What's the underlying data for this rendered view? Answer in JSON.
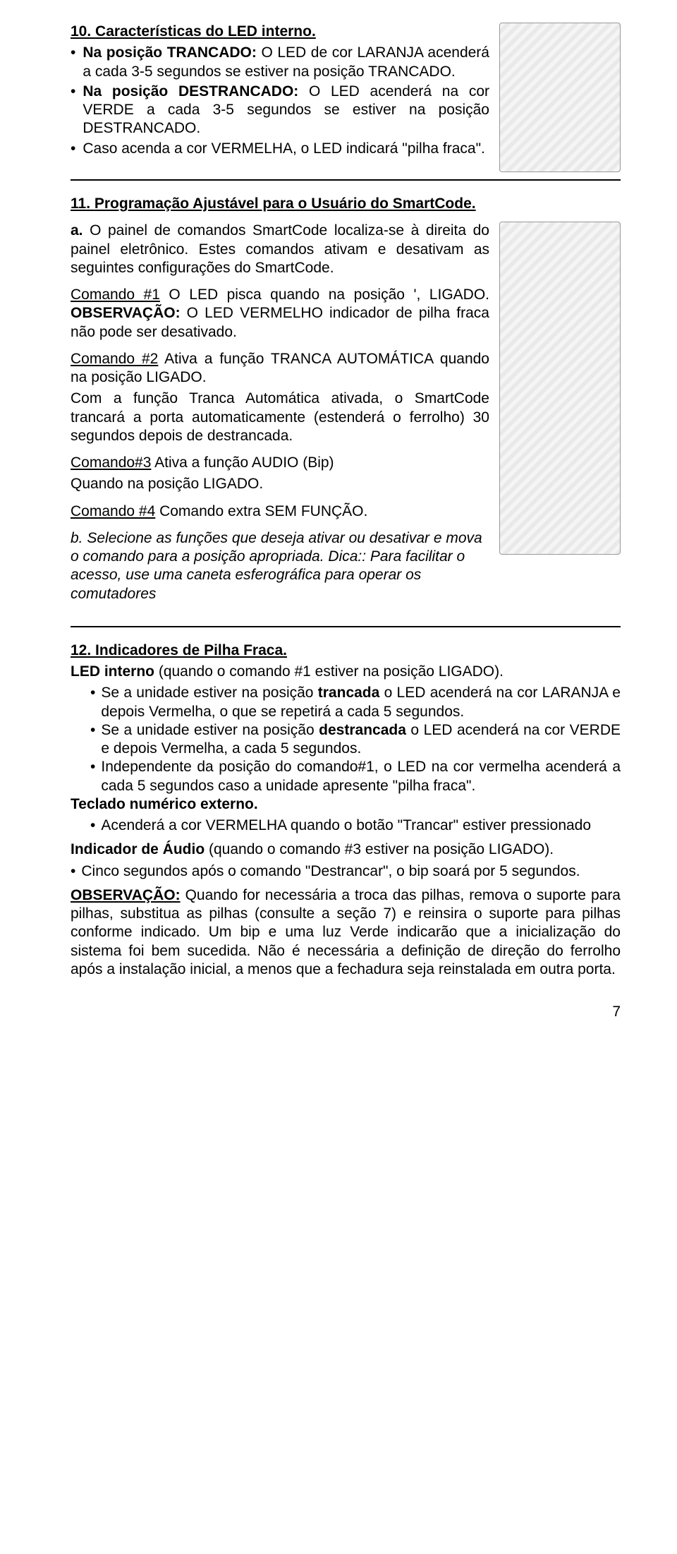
{
  "page_number": "7",
  "sec10": {
    "heading_prefix": "10.   ",
    "heading": "Características do LED interno.",
    "bullets": [
      {
        "lead": "Na posição TRANCADO: ",
        "rest": "O LED de cor LARANJA acenderá a cada 3-5 segundos se estiver na posição TRANCADO."
      },
      {
        "lead": "Na posição DESTRANCADO: ",
        "rest": "O LED acenderá na cor VERDE a cada 3-5 segundos se estiver na posição DESTRANCADO."
      },
      {
        "lead": "",
        "rest": "Caso acenda a cor VERMELHA, o LED indicará \"pilha fraca\"."
      }
    ]
  },
  "sec11": {
    "heading_prefix": "11.   ",
    "heading": "Programação Ajustável para o Usuário do SmartCode.",
    "item_a_marker": "a.",
    "item_a_text": "O painel de comandos SmartCode localiza-se à direita do painel eletrônico. Estes comandos ativam e desativam as seguintes configurações do SmartCode.",
    "cmd1_u": "Comando #1",
    "cmd1_text": " O LED pisca quando na posição   ', LIGADO. ",
    "cmd1_obs_b": "OBSERVAÇÃO:",
    "cmd1_obs_text": " O LED VERMELHO indicador de pilha fraca não pode ser desativado.",
    "cmd2_u": "Comando #2",
    "cmd2_pre": " Ativa a função TRANCA AUTOMÁTICA quando na posição LIGADO.",
    "cmd2_rest": "Com a função Tranca Automática ativada, o SmartCode trancará a porta automaticamente (estenderá o ferrolho) 30 segundos depois de destrancada.",
    "cmd3_u": "Comando#3",
    "cmd3_line1": " Ativa a função AUDIO (Bip)",
    "cmd3_line2": "Quando na posição LIGADO.",
    "cmd4_u": "Comando #4",
    "cmd4_text": " Comando extra SEM FUNÇÃO.",
    "item_b_marker": "b.",
    "item_b_text": "Selecione as funções que deseja ativar ou desativar e mova o comando para a posição apropriada. Dica:: Para facilitar o acesso, use uma caneta esferográfica para operar os comutadores"
  },
  "sec12": {
    "heading_prefix": "12.   ",
    "heading": "Indicadores de Pilha Fraca.",
    "led_interno_b": "LED interno",
    "led_interno_rest": " (quando o comando #1 estiver na posição LIGADO).",
    "bullets1": [
      {
        "pre": "Se a unidade estiver na posição ",
        "b": "trancada",
        "post": " o LED acenderá na cor LARANJA e depois Vermelha, o que se repetirá a cada 5 segundos."
      },
      {
        "pre": "Se a unidade estiver na posição ",
        "b": "destrancada",
        "post": " o LED acenderá na cor VERDE e depois Vermelha, a cada 5 segundos."
      },
      {
        "pre": "Independente da posição do comando#1, o LED na cor vermelha acenderá a cada 5 segundos caso a unidade apresente \"pilha fraca\".",
        "b": "",
        "post": ""
      }
    ],
    "teclado_b": "Teclado numérico externo.",
    "bullets2": [
      "Acenderá a cor VERMELHA quando o botão \"Trancar\" estiver pressionado"
    ],
    "audio_b": "Indicador de Áudio",
    "audio_rest": " (quando o comando #3 estiver na posição LIGADO).",
    "audio_bullets": [
      "Cinco segundos após o comando \"Destrancar\", o bip soará por 5 segundos."
    ],
    "obs_b": "OBSERVAÇÃO:",
    "obs_text": " Quando for necessária a troca das pilhas, remova o suporte para pilhas, substitua as pilhas (consulte a seção 7) e reinsira o suporte para pilhas conforme indicado. Um bip e uma luz Verde indicarão que a inicialização do sistema foi bem sucedida. Não é necessária a definição de direção do ferrolho após a instalação inicial, a menos que a fechadura seja reinstalada em outra porta."
  }
}
